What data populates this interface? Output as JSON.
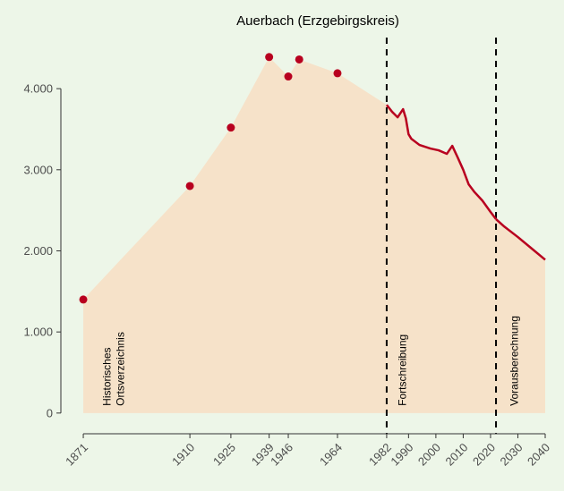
{
  "chart_data": {
    "type": "area-line",
    "title": "Auerbach (Erzgebirgskreis)",
    "xlim": [
      1862.8,
      2043.6
    ],
    "ylim": [
      -90,
      4630
    ],
    "xticks": [
      1871,
      1910,
      1925,
      1939,
      1946,
      1964,
      1982,
      1990,
      2000,
      2010,
      2020,
      2030,
      2040
    ],
    "yticks": [
      0,
      {
        "value": 1000,
        "label": "1.000"
      },
      {
        "value": 2000,
        "label": "2.000"
      },
      {
        "value": 3000,
        "label": "3.000"
      },
      {
        "value": 4000,
        "label": "4.000"
      }
    ],
    "area_color": "#f6e2c9",
    "vlines": [
      1982,
      2022
    ],
    "series": [
      {
        "mode": "markers",
        "color": "#b8001f",
        "x": [
          1871,
          1910,
          1925,
          1939,
          1946,
          1950,
          1964
        ],
        "values": [
          1400,
          2800,
          3520,
          4390,
          4150,
          4360,
          4190
        ]
      },
      {
        "mode": "lines",
        "color": "#b8001f",
        "x": [
          1982,
          1984,
          1986,
          1988,
          1989,
          1990,
          1991,
          1994,
          1998,
          2001,
          2004,
          2006,
          2008,
          2010,
          2012,
          2014,
          2017,
          2020,
          2022
        ],
        "values": [
          3800,
          3714,
          3647,
          3747,
          3636,
          3438,
          3383,
          3306,
          3262,
          3240,
          3196,
          3295,
          3150,
          3000,
          2820,
          2730,
          2620,
          2480,
          2391
        ]
      },
      {
        "mode": "lines",
        "color": "#b8001f",
        "x": [
          2022,
          2025,
          2030,
          2035,
          2040
        ],
        "values": [
          2391,
          2300,
          2170,
          2030,
          1890
        ]
      }
    ],
    "annotations": [
      {
        "x": 1881,
        "lines": [
          "Historisches",
          "Ortsverzeichnis"
        ]
      },
      {
        "x": 1989,
        "lines": [
          "Fortschreibung"
        ]
      },
      {
        "x": 2030,
        "lines": [
          "Vorausberechnung"
        ]
      }
    ]
  }
}
